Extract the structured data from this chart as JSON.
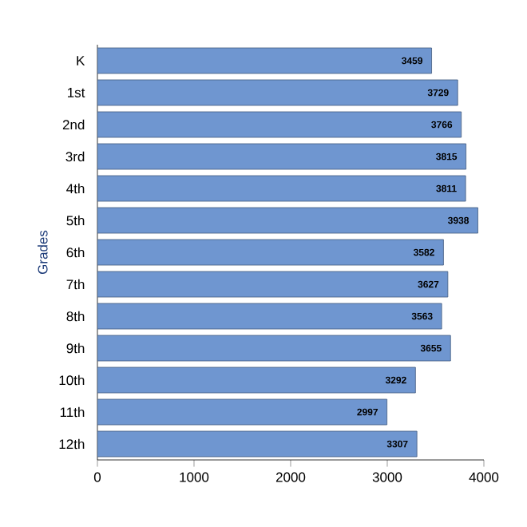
{
  "chart_data": {
    "type": "bar",
    "orientation": "horizontal",
    "ylabel": "Grades",
    "categories": [
      "K",
      "1st",
      "2nd",
      "3rd",
      "4th",
      "5th",
      "6th",
      "7th",
      "8th",
      "9th",
      "10th",
      "11th",
      "12th"
    ],
    "values": [
      3459,
      3729,
      3766,
      3815,
      3811,
      3938,
      3582,
      3627,
      3563,
      3655,
      3292,
      2997,
      3307
    ],
    "color": "#6f96d0",
    "xlim": [
      0,
      4000
    ],
    "xticks": [
      0,
      1000,
      2000,
      3000,
      4000
    ],
    "data_labels": true
  }
}
